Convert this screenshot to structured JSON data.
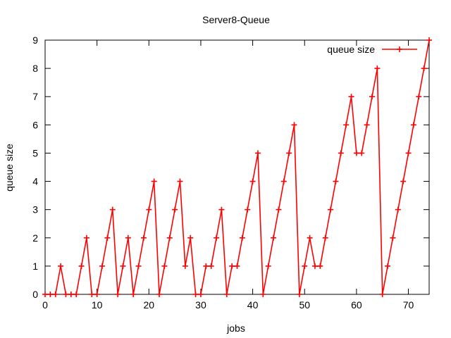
{
  "chart_data": {
    "type": "line",
    "title": "Server8-Queue",
    "xlabel": "jobs",
    "ylabel": "queue size",
    "xlim": [
      0,
      74
    ],
    "ylim": [
      0,
      9
    ],
    "xticks": [
      0,
      10,
      20,
      30,
      40,
      50,
      60,
      70
    ],
    "yticks": [
      0,
      1,
      2,
      3,
      4,
      5,
      6,
      7,
      8,
      9
    ],
    "grid": false,
    "legend_position": "top-right",
    "series": [
      {
        "name": "queue size",
        "color": "#ff0000",
        "marker": "plus",
        "x": [
          0,
          1,
          2,
          3,
          4,
          5,
          6,
          7,
          8,
          9,
          10,
          11,
          12,
          13,
          14,
          15,
          16,
          17,
          18,
          19,
          20,
          21,
          22,
          23,
          24,
          25,
          26,
          27,
          28,
          29,
          30,
          31,
          32,
          33,
          34,
          35,
          36,
          37,
          38,
          39,
          40,
          41,
          42,
          43,
          44,
          45,
          46,
          47,
          48,
          49,
          50,
          51,
          52,
          53,
          54,
          55,
          56,
          57,
          58,
          59,
          60,
          61,
          62,
          63,
          64,
          65,
          66,
          67,
          68,
          69,
          70,
          71,
          72,
          73,
          74
        ],
        "y": [
          0,
          0,
          0,
          1,
          0,
          0,
          0,
          1,
          2,
          0,
          0,
          1,
          2,
          3,
          0,
          1,
          2,
          0,
          1,
          2,
          3,
          4,
          0,
          1,
          2,
          3,
          4,
          1,
          2,
          0,
          0,
          1,
          1,
          2,
          3,
          0,
          1,
          1,
          2,
          3,
          4,
          5,
          0,
          1,
          2,
          3,
          4,
          5,
          6,
          0,
          1,
          2,
          1,
          1,
          2,
          3,
          4,
          5,
          6,
          7,
          5,
          5,
          6,
          7,
          8,
          0,
          1,
          2,
          3,
          4,
          5,
          6,
          7,
          8,
          9
        ]
      }
    ]
  }
}
